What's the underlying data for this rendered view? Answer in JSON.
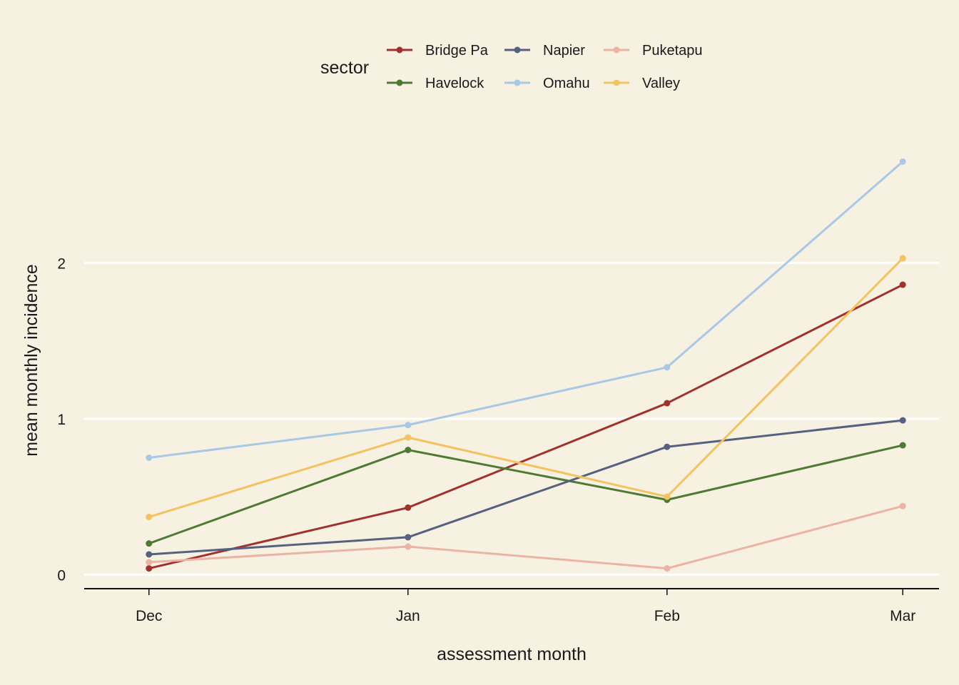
{
  "chart_data": {
    "type": "line",
    "title": "",
    "xlabel": "assessment month",
    "ylabel": "mean monthly incidence",
    "categories": [
      "Dec",
      "Jan",
      "Feb",
      "Mar"
    ],
    "x_positions": [
      0.15,
      1.15,
      2.15,
      3.06
    ],
    "x_range": [
      -0.1,
      3.2
    ],
    "y_range": [
      -0.09,
      3.0
    ],
    "y_ticks": [
      0,
      1,
      2
    ],
    "y_tick_labels": [
      "0",
      "1",
      "2"
    ],
    "grid": "horizontal-major",
    "legend": {
      "title": "sector",
      "position": "top"
    },
    "series": [
      {
        "name": "Bridge Pa",
        "color": "#a0312e",
        "values": [
          0.04,
          0.43,
          1.1,
          1.86
        ]
      },
      {
        "name": "Havelock",
        "color": "#4e7a34",
        "values": [
          0.2,
          0.8,
          0.48,
          0.83
        ]
      },
      {
        "name": "Napier",
        "color": "#55617f",
        "values": [
          0.13,
          0.24,
          0.82,
          0.99
        ]
      },
      {
        "name": "Omahu",
        "color": "#a9c8e6",
        "values": [
          0.75,
          0.96,
          1.33,
          2.65
        ]
      },
      {
        "name": "Puketapu",
        "color": "#ebb3a4",
        "values": [
          0.08,
          0.18,
          0.04,
          0.44
        ]
      },
      {
        "name": "Valley",
        "color": "#f2c360",
        "values": [
          0.37,
          0.88,
          0.5,
          2.03
        ]
      }
    ]
  }
}
